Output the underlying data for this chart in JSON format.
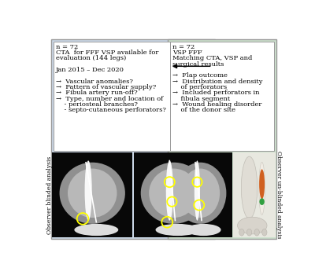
{
  "left_box_bg": "#ccd9e8",
  "right_box_bg": "#cce0cc",
  "left_label_text": "Observer blinded analysis",
  "right_label_text": "Observer un-blinded analysis",
  "left_box_lines": [
    "n = 72",
    "CTA  for FFF VSP available for",
    "evaluation (144 legs)",
    "",
    "Jan 2015 – Dec 2020",
    "",
    "→  Vascular anomalies?",
    "→  Pattern of vascular supply?",
    "→  Fibula artery run-off?",
    "→  Type, number and location of",
    "    - periosteal branches?",
    "    - septo-cutaneous perforators?"
  ],
  "right_box_lines": [
    "n = 72",
    "VSP FFF",
    "Matching CTA, VSP and",
    "surgical results",
    "",
    "→  Flap outcome",
    "→  Distribution and density",
    "    of perforators",
    "→  Included perforators in",
    "    fibula segment",
    "→  Wound healing disorder",
    "    of the donor site"
  ],
  "outer_bg": "#ffffff",
  "border_color": "#999999",
  "text_color": "#000000",
  "arrow_color": "#000000"
}
